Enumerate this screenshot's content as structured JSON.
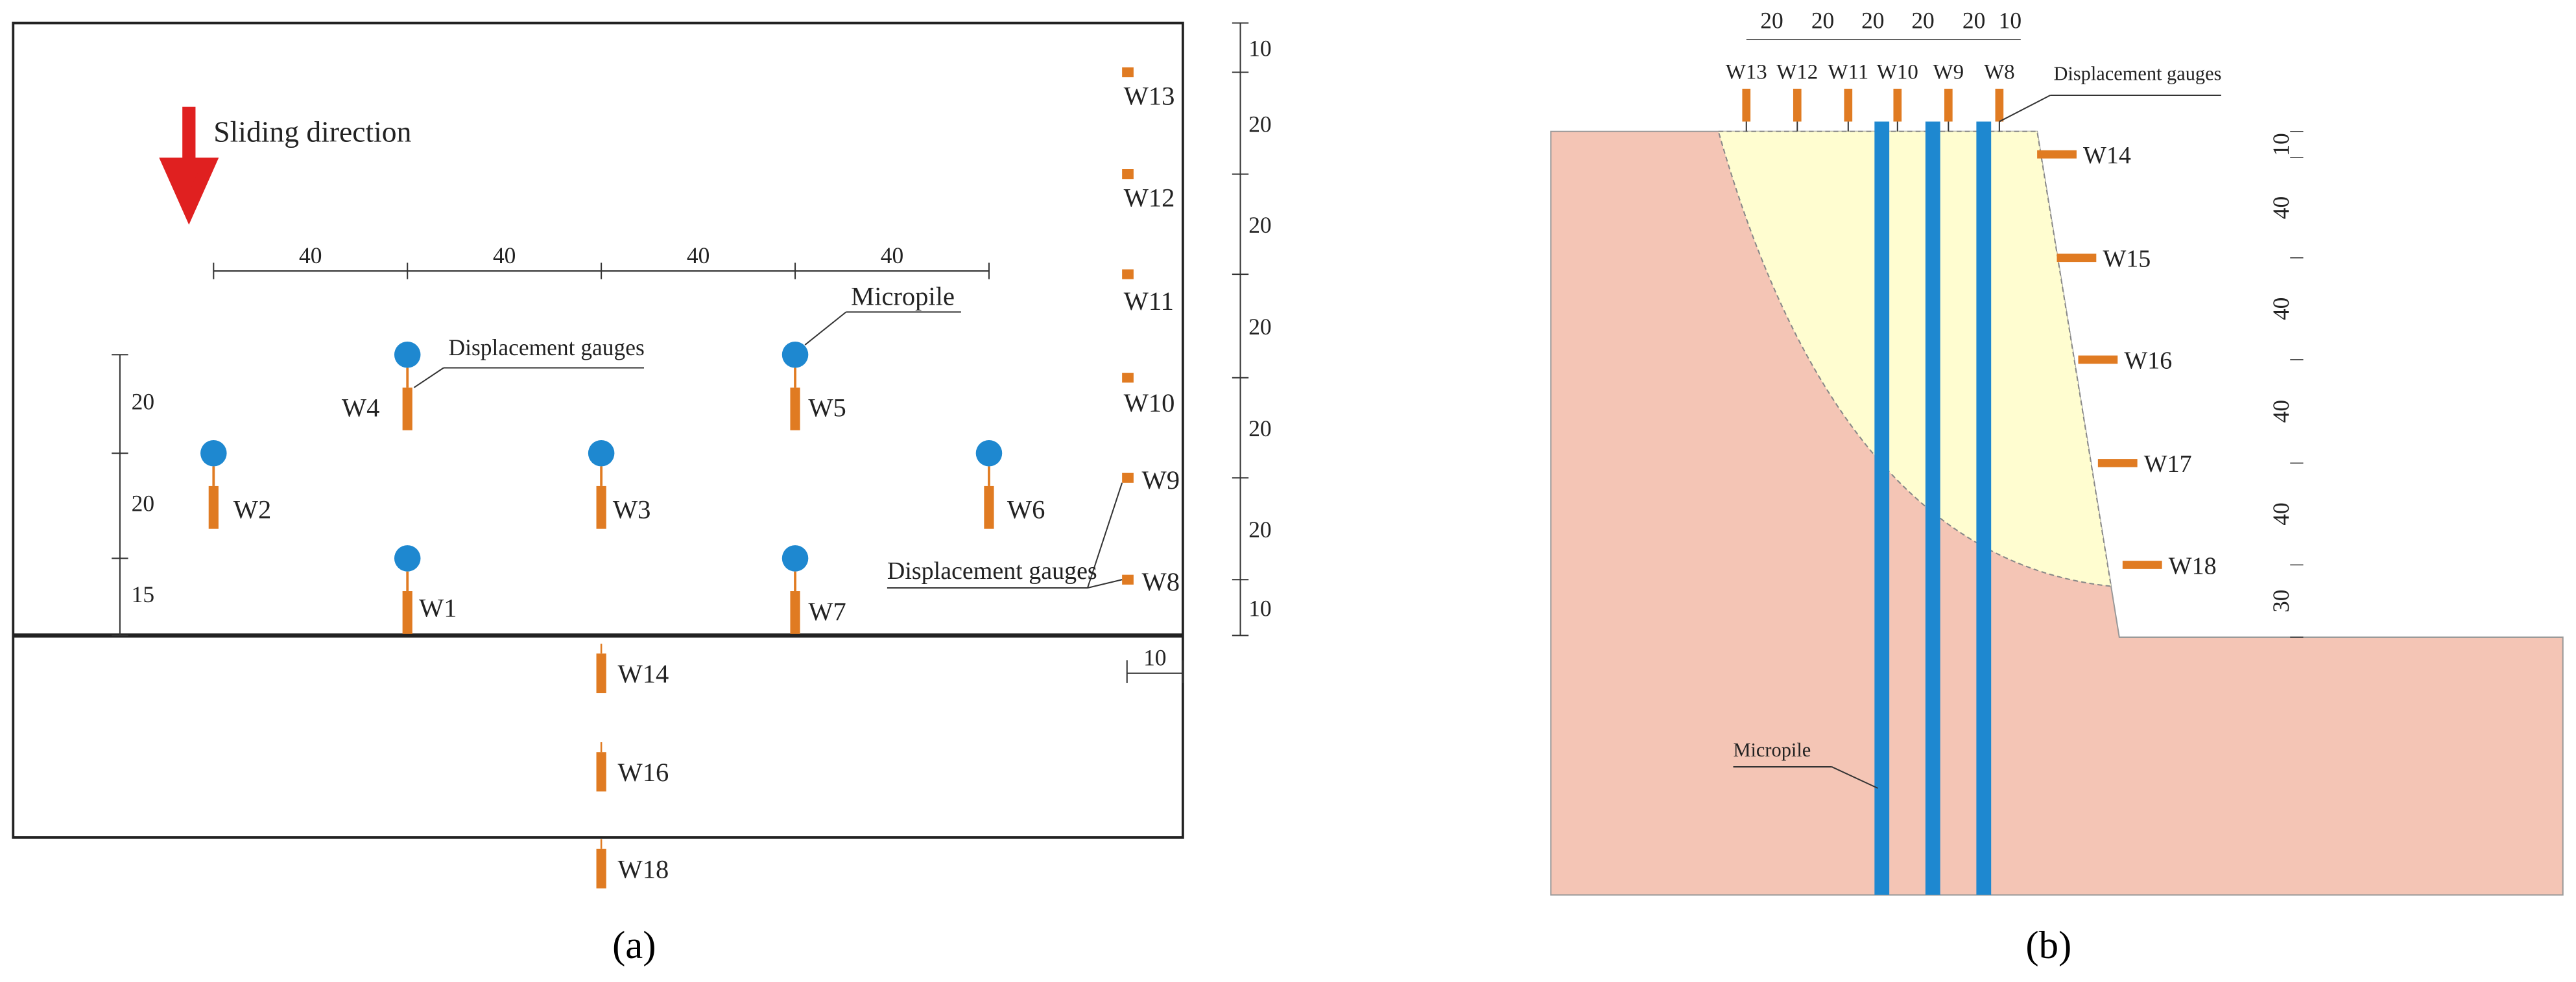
{
  "panel_a": {
    "direction_label": "Sliding direction",
    "top_dimensions": [
      40,
      40,
      40,
      40
    ],
    "left_dimensions": [
      20,
      20,
      15
    ],
    "right_dimensions": [
      10,
      20,
      20,
      20,
      20,
      20,
      10
    ],
    "bottom_dimension": 10,
    "gauges": [
      "W1",
      "W2",
      "W3",
      "W4",
      "W5",
      "W6",
      "W7",
      "W8",
      "W9",
      "W10",
      "W11",
      "W12",
      "W13",
      "W14",
      "W16",
      "W18"
    ],
    "annotations": [
      "Displacement gauges",
      "Micropile",
      "Displacement gauges"
    ],
    "caption": "(a)"
  },
  "panel_b": {
    "top_dimensions": [
      20,
      20,
      20,
      20,
      20,
      10
    ],
    "top_gauges": [
      "W13",
      "W12",
      "W11",
      "W10",
      "W9",
      "W8"
    ],
    "side_gauges": [
      "W14",
      "W15",
      "W16",
      "W17",
      "W18"
    ],
    "right_dimensions": [
      10,
      40,
      40,
      40,
      40,
      30
    ],
    "annotations": [
      "Displacement gauges",
      "Micropile"
    ],
    "caption": "(b)"
  }
}
